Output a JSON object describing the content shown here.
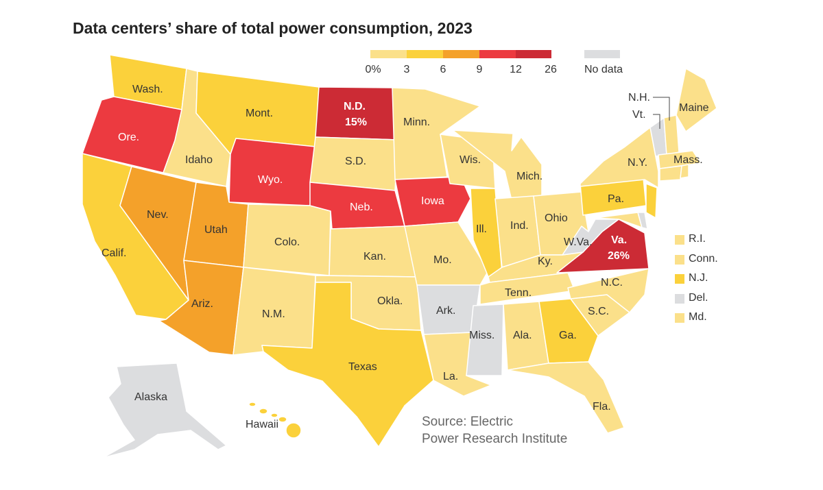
{
  "title": "Data centers’ share of total power consumption, 2023",
  "legend": {
    "bins": [
      {
        "color": "#fbe08a"
      },
      {
        "color": "#fbd13b"
      },
      {
        "color": "#f4a12a"
      },
      {
        "color": "#ec3a40"
      },
      {
        "color": "#cc2b35"
      }
    ],
    "ticks": [
      "0%",
      "3",
      "6",
      "9",
      "12",
      "26"
    ],
    "no_data_color": "#dcdddf",
    "no_data_label": "No data"
  },
  "states": {
    "wa": {
      "label": "Wash."
    },
    "or": {
      "label": "Ore."
    },
    "ca": {
      "label": "Calif."
    },
    "nv": {
      "label": "Nev."
    },
    "id": {
      "label": "Idaho"
    },
    "mt": {
      "label": "Mont."
    },
    "wy": {
      "label": "Wyo."
    },
    "ut": {
      "label": "Utah"
    },
    "az": {
      "label": "Ariz."
    },
    "co": {
      "label": "Colo."
    },
    "nm": {
      "label": "N.M."
    },
    "nd": {
      "label": "N.D.",
      "value_label": "15%"
    },
    "sd": {
      "label": "S.D."
    },
    "ne": {
      "label": "Neb."
    },
    "ks": {
      "label": "Kan."
    },
    "ok": {
      "label": "Okla."
    },
    "tx": {
      "label": "Texas"
    },
    "mn": {
      "label": "Minn."
    },
    "ia": {
      "label": "Iowa"
    },
    "mo": {
      "label": "Mo."
    },
    "ar": {
      "label": "Ark."
    },
    "la": {
      "label": "La."
    },
    "wi": {
      "label": "Wis."
    },
    "il": {
      "label": "Ill."
    },
    "mi": {
      "label": "Mich."
    },
    "in": {
      "label": "Ind."
    },
    "oh": {
      "label": "Ohio"
    },
    "ky": {
      "label": "Ky."
    },
    "tn": {
      "label": "Tenn."
    },
    "ms": {
      "label": "Miss."
    },
    "al": {
      "label": "Ala."
    },
    "ga": {
      "label": "Ga."
    },
    "fl": {
      "label": "Fla."
    },
    "sc": {
      "label": "S.C."
    },
    "nc": {
      "label": "N.C."
    },
    "va": {
      "label": "Va.",
      "value_label": "26%"
    },
    "wv": {
      "label": "W.Va."
    },
    "pa": {
      "label": "Pa."
    },
    "ny": {
      "label": "N.Y."
    },
    "me": {
      "label": "Maine"
    },
    "nh": {
      "label": "N.H."
    },
    "vt": {
      "label": "Vt."
    },
    "ma": {
      "label": "Mass."
    },
    "ak": {
      "label": "Alaska"
    },
    "hi": {
      "label": "Hawaii"
    }
  },
  "small_states_legend": [
    {
      "label": "R.I.",
      "color": "#fbe08a"
    },
    {
      "label": "Conn.",
      "color": "#fbe08a"
    },
    {
      "label": "N.J.",
      "color": "#fbd13b"
    },
    {
      "label": "Del.",
      "color": "#dcdddf"
    },
    {
      "label": "Md.",
      "color": "#fbe08a"
    }
  ],
  "source_line1": "Source: Electric",
  "source_line2": "Power Research Institute"
}
